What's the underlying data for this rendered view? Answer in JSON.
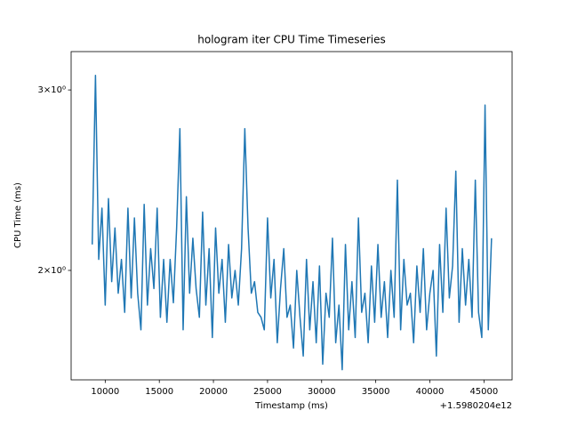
{
  "chart_data": {
    "type": "line",
    "title": "hologram iter CPU Time Timeseries",
    "x_label": "Timestamp (ms)",
    "y_label": "CPU Time (ms)",
    "x_offset_label": "+1.5980204e12",
    "y_scale": "log",
    "color": "#1f77b4",
    "xlim": [
      6850,
      47600
    ],
    "ylim": [
      1.564,
      3.27
    ],
    "xticks": [
      10000,
      15000,
      20000,
      25000,
      30000,
      35000,
      40000,
      45000
    ],
    "yticks": [
      {
        "value": 2,
        "label": "2×10⁰"
      },
      {
        "value": 3,
        "label": "3×10⁰"
      }
    ],
    "x": [
      8800,
      9100,
      9400,
      9700,
      10000,
      10300,
      10600,
      10900,
      11200,
      11500,
      11800,
      12100,
      12400,
      12700,
      13000,
      13300,
      13600,
      13900,
      14200,
      14500,
      14800,
      15100,
      15400,
      15700,
      16000,
      16300,
      16600,
      16900,
      17200,
      17500,
      17800,
      18100,
      18400,
      18700,
      19000,
      19300,
      19600,
      19900,
      20200,
      20500,
      20800,
      21100,
      21400,
      21700,
      22000,
      22300,
      22600,
      22900,
      23200,
      23500,
      23800,
      24100,
      24400,
      24700,
      25000,
      25300,
      25600,
      25900,
      26200,
      26500,
      26800,
      27100,
      27400,
      27700,
      28000,
      28300,
      28600,
      28900,
      29200,
      29500,
      29800,
      30100,
      30400,
      30700,
      31000,
      31300,
      31600,
      31900,
      32200,
      32500,
      32800,
      33100,
      33400,
      33700,
      34000,
      34300,
      34600,
      34900,
      35200,
      35500,
      35800,
      36100,
      36400,
      36700,
      37000,
      37300,
      37600,
      37900,
      38200,
      38500,
      38800,
      39100,
      39400,
      39700,
      40000,
      40300,
      40600,
      40900,
      41200,
      41500,
      41800,
      42100,
      42400,
      42700,
      43000,
      43300,
      43600,
      43900,
      44200,
      44500,
      44800,
      45100,
      45400,
      45700
    ],
    "values": [
      2.12,
      3.1,
      2.05,
      2.3,
      1.85,
      2.35,
      1.95,
      2.2,
      1.9,
      2.05,
      1.82,
      2.3,
      1.88,
      2.25,
      1.9,
      1.75,
      2.32,
      1.85,
      2.1,
      1.92,
      2.3,
      1.8,
      2.05,
      1.78,
      2.05,
      1.86,
      2.2,
      2.75,
      1.75,
      2.36,
      1.9,
      2.15,
      1.92,
      1.8,
      2.28,
      1.85,
      2.1,
      1.72,
      2.2,
      1.9,
      2.05,
      1.78,
      2.12,
      1.88,
      2.0,
      1.85,
      2.1,
      2.75,
      2.2,
      1.9,
      1.95,
      1.82,
      1.8,
      1.75,
      2.25,
      1.88,
      2.05,
      1.7,
      1.92,
      2.1,
      1.8,
      1.85,
      1.68,
      2.0,
      1.8,
      1.65,
      2.05,
      1.75,
      1.95,
      1.7,
      2.02,
      1.62,
      1.9,
      1.8,
      2.15,
      1.7,
      1.85,
      1.6,
      2.12,
      1.75,
      1.95,
      1.72,
      2.25,
      1.82,
      1.9,
      1.7,
      2.02,
      1.78,
      2.12,
      1.8,
      1.95,
      1.72,
      2.0,
      1.8,
      2.45,
      1.75,
      2.05,
      1.85,
      1.9,
      1.7,
      2.02,
      1.82,
      2.1,
      1.75,
      1.9,
      2.0,
      1.65,
      2.12,
      1.82,
      2.3,
      1.88,
      2.02,
      2.5,
      1.78,
      2.1,
      1.85,
      2.05,
      1.8,
      2.45,
      1.82,
      1.72,
      2.9,
      1.75,
      2.15
    ]
  }
}
